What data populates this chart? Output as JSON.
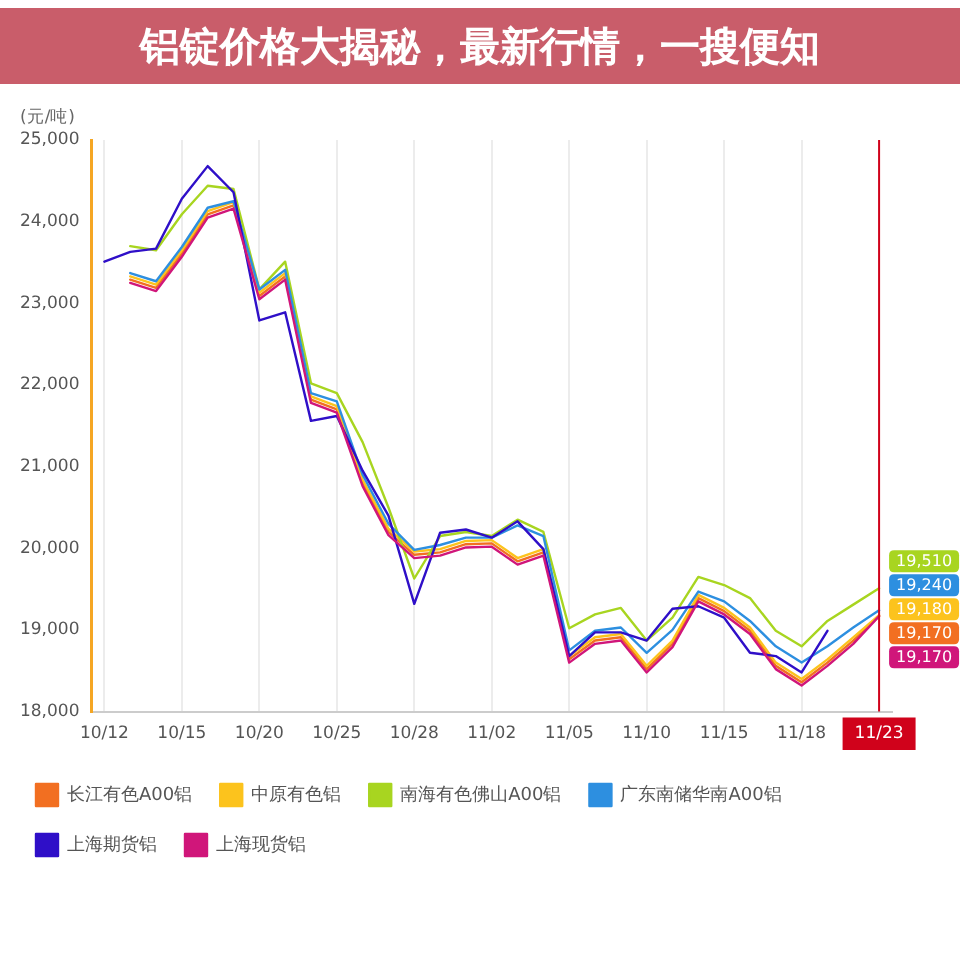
{
  "chart_data": {
    "type": "line",
    "title": "铝锭价格大揭秘，最新行情，一搜便知",
    "ylabel": "(元/吨)",
    "categories": [
      "10/12",
      null,
      null,
      "10/15",
      null,
      null,
      "10/20",
      null,
      null,
      "10/25",
      null,
      null,
      "10/28",
      null,
      null,
      "11/02",
      null,
      null,
      "11/05",
      null,
      null,
      "11/10",
      null,
      null,
      "11/15",
      null,
      null,
      "11/18",
      null,
      null,
      "11/23"
    ],
    "series": [
      {
        "name": "长江有色A00铝",
        "color": "#f26f21",
        "values": [
          null,
          23290,
          23190,
          23610,
          24090,
          24200,
          23090,
          23330,
          21820,
          21700,
          20800,
          20200,
          19920,
          19950,
          20050,
          20060,
          19840,
          19950,
          18640,
          18870,
          18910,
          18520,
          18830,
          19390,
          19230,
          18990,
          18560,
          18360,
          18600,
          18870,
          19170
        ],
        "value_labels": [
          null,
          null,
          null,
          null,
          null,
          null,
          null,
          null,
          null,
          null,
          null,
          null,
          null,
          null,
          null,
          null,
          null,
          null,
          null,
          null,
          null,
          null,
          null,
          null,
          null,
          null,
          null,
          null,
          null,
          null,
          "19,170"
        ]
      },
      {
        "name": "中原有色铝",
        "color": "#fcc31d",
        "values": [
          null,
          23330,
          23230,
          23650,
          24130,
          24240,
          23130,
          23370,
          21860,
          21740,
          20840,
          20240,
          19960,
          19990,
          20090,
          20100,
          19880,
          19990,
          18680,
          18910,
          18950,
          18560,
          18870,
          19430,
          19270,
          19030,
          18600,
          18400,
          18640,
          18910,
          19180
        ],
        "value_labels": [
          null,
          null,
          null,
          null,
          null,
          null,
          null,
          null,
          null,
          null,
          null,
          null,
          null,
          null,
          null,
          null,
          null,
          null,
          null,
          null,
          null,
          null,
          null,
          null,
          null,
          null,
          null,
          null,
          null,
          null,
          "19,180"
        ]
      },
      {
        "name": "南海有色佛山A00铝",
        "color": "#a8d520",
        "values": [
          null,
          23700,
          23650,
          24090,
          24440,
          24400,
          23170,
          23510,
          22020,
          21900,
          21300,
          20500,
          19630,
          20150,
          20200,
          20150,
          20350,
          20200,
          19020,
          19190,
          19270,
          18870,
          19150,
          19650,
          19550,
          19390,
          18990,
          18800,
          19110,
          19310,
          19510
        ],
        "value_labels": [
          null,
          null,
          null,
          null,
          null,
          null,
          null,
          null,
          null,
          null,
          null,
          null,
          null,
          null,
          null,
          null,
          null,
          null,
          null,
          null,
          null,
          null,
          null,
          null,
          null,
          null,
          null,
          null,
          null,
          null,
          "19,510"
        ]
      },
      {
        "name": "广东南储华南A00铝",
        "color": "#2d8fe0",
        "values": [
          null,
          23370,
          23270,
          23690,
          24170,
          24250,
          23170,
          23410,
          21900,
          21800,
          20900,
          20300,
          19980,
          20040,
          20130,
          20130,
          20280,
          20150,
          18750,
          18990,
          19030,
          18720,
          19000,
          19470,
          19350,
          19110,
          18800,
          18600,
          18800,
          19030,
          19240
        ],
        "value_labels": [
          null,
          null,
          null,
          null,
          null,
          null,
          null,
          null,
          null,
          null,
          null,
          null,
          null,
          null,
          null,
          null,
          null,
          null,
          null,
          null,
          null,
          null,
          null,
          null,
          null,
          null,
          null,
          null,
          null,
          null,
          "19,240"
        ]
      },
      {
        "name": "上海期货铝",
        "color": "#2f0fc8",
        "values": [
          23510,
          23630,
          23670,
          24280,
          24680,
          24360,
          22790,
          22890,
          21560,
          21620,
          20950,
          20400,
          19320,
          20190,
          20230,
          20130,
          20330,
          19990,
          18680,
          18970,
          18970,
          18870,
          19260,
          19290,
          19150,
          18720,
          18680,
          18480,
          18990,
          null,
          null
        ]
      },
      {
        "name": "上海现货铝",
        "color": "#d0167a",
        "values": [
          null,
          23250,
          23150,
          23570,
          24050,
          24160,
          23050,
          23290,
          21780,
          21660,
          20760,
          20160,
          19880,
          19910,
          20010,
          20020,
          19800,
          19910,
          18600,
          18830,
          18870,
          18480,
          18790,
          19350,
          19190,
          18950,
          18520,
          18320,
          18560,
          18830,
          19170
        ],
        "value_labels": [
          null,
          null,
          null,
          null,
          null,
          null,
          null,
          null,
          null,
          null,
          null,
          null,
          null,
          null,
          null,
          null,
          null,
          null,
          null,
          null,
          null,
          null,
          null,
          null,
          null,
          null,
          null,
          null,
          null,
          null,
          "19,170"
        ]
      }
    ],
    "ylim": [
      18000,
      25000
    ],
    "yticks": [
      {
        "value": 18000,
        "label": "18,000"
      },
      {
        "value": 19000,
        "label": "19,000"
      },
      {
        "value": 20000,
        "label": "20,000"
      },
      {
        "value": 21000,
        "label": "21,000"
      },
      {
        "value": 22000,
        "label": "22,000"
      },
      {
        "value": 23000,
        "label": "23,000"
      },
      {
        "value": 24000,
        "label": "24,000"
      },
      {
        "value": 25000,
        "label": "25,000"
      }
    ],
    "ref_lines": [
      {
        "axis": "x",
        "value": "11/23",
        "color": "#d0021b"
      }
    ],
    "grid": "x",
    "legend": "bottom",
    "marker": "none"
  }
}
